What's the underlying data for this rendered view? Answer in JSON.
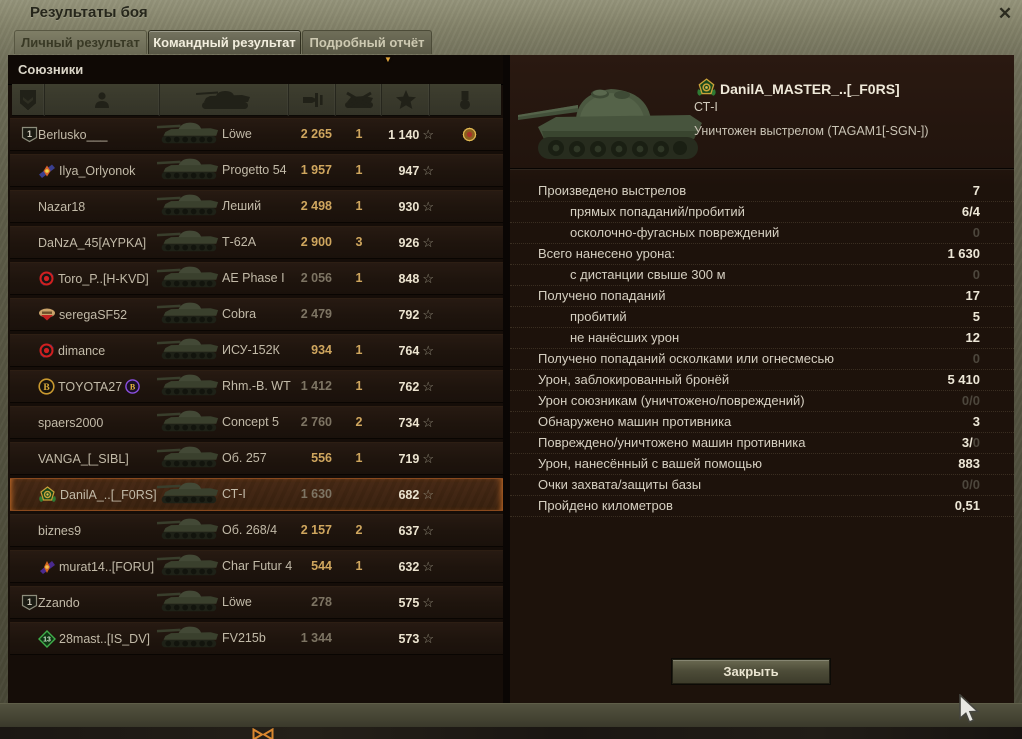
{
  "window": {
    "title": "Результаты боя"
  },
  "icons": {
    "close": "✕",
    "sort_desc": "▼",
    "xp_star": "☆"
  },
  "tabs": [
    {
      "label": "Личный результат",
      "active": false
    },
    {
      "label": "Командный результат",
      "active": true
    },
    {
      "label": "Подробный отчёт",
      "active": false
    }
  ],
  "allies": {
    "header": "Союзники",
    "columns": [
      "rank-icon",
      "player-icon",
      "vehicle-icon",
      "damage-icon",
      "kills-icon",
      "xp-star-icon",
      "medal-icon"
    ],
    "sorted_column": "xp",
    "rows": [
      {
        "squad": "1",
        "emblem": "",
        "player": "Berlusko___",
        "badge": "",
        "vehicle": "Löwe",
        "damage": "2 265",
        "damage_bright": true,
        "frags": "1",
        "xp": "1 140",
        "medal": true,
        "selected": false
      },
      {
        "squad": "",
        "emblem": "ilya",
        "player": "Ilya_Orlyonok",
        "badge": "",
        "vehicle": "Progetto 54",
        "damage": "1 957",
        "damage_bright": true,
        "frags": "1",
        "xp": "947",
        "medal": false,
        "selected": false
      },
      {
        "squad": "",
        "emblem": "",
        "player": "Nazar18",
        "badge": "",
        "vehicle": "Леший",
        "damage": "2 498",
        "damage_bright": true,
        "frags": "1",
        "xp": "930",
        "medal": false,
        "selected": false
      },
      {
        "squad": "",
        "emblem": "",
        "player": "DaNzA_45[AYPKA]",
        "badge": "",
        "vehicle": "Т-62А",
        "damage": "2 900",
        "damage_bright": true,
        "frags": "3",
        "xp": "926",
        "medal": false,
        "selected": false
      },
      {
        "squad": "",
        "emblem": "toro",
        "player": "Toro_P..[H-KVD]",
        "badge": "",
        "vehicle": "AE Phase I",
        "damage": "2 056",
        "damage_bright": false,
        "frags": "1",
        "xp": "848",
        "medal": false,
        "selected": false
      },
      {
        "squad": "",
        "emblem": "serega",
        "player": "seregaSF52",
        "badge": "",
        "vehicle": "Cobra",
        "damage": "2 479",
        "damage_bright": false,
        "frags": "",
        "xp": "792",
        "medal": false,
        "selected": false
      },
      {
        "squad": "",
        "emblem": "dimance",
        "player": "dimance",
        "badge": "",
        "vehicle": "ИСУ-152К",
        "damage": "934",
        "damage_bright": true,
        "frags": "1",
        "xp": "764",
        "medal": false,
        "selected": false
      },
      {
        "squad": "",
        "emblem": "toyota",
        "player": "TOYOTA27",
        "badge": "toyota2",
        "vehicle": "Rhm.-B. WT",
        "damage": "1 412",
        "damage_bright": false,
        "frags": "1",
        "xp": "762",
        "medal": false,
        "selected": false
      },
      {
        "squad": "",
        "emblem": "",
        "player": "spaers2000",
        "badge": "",
        "vehicle": "Concept 5",
        "damage": "2 760",
        "damage_bright": false,
        "frags": "2",
        "xp": "734",
        "medal": false,
        "selected": false
      },
      {
        "squad": "",
        "emblem": "",
        "player": "VANGA_[_SIBL]",
        "badge": "",
        "vehicle": "Об. 257",
        "damage": "556",
        "damage_bright": true,
        "frags": "1",
        "xp": "719",
        "medal": false,
        "selected": false
      },
      {
        "squad": "",
        "emblem": "danila",
        "player": "DanilA_..[_F0RS]",
        "badge": "",
        "vehicle": "СТ-I",
        "damage": "1 630",
        "damage_bright": false,
        "frags": "",
        "xp": "682",
        "medal": false,
        "selected": true
      },
      {
        "squad": "",
        "emblem": "",
        "player": "biznes9",
        "badge": "",
        "vehicle": "Об. 268/4",
        "damage": "2 157",
        "damage_bright": true,
        "frags": "2",
        "xp": "637",
        "medal": false,
        "selected": false
      },
      {
        "squad": "",
        "emblem": "murat",
        "player": "murat14..[FORU]",
        "badge": "",
        "vehicle": "Char Futur 4",
        "damage": "544",
        "damage_bright": true,
        "frags": "1",
        "xp": "632",
        "medal": false,
        "selected": false
      },
      {
        "squad": "1",
        "emblem": "",
        "player": "Zzando",
        "badge": "",
        "vehicle": "Löwe",
        "damage": "278",
        "damage_bright": false,
        "frags": "",
        "xp": "575",
        "medal": false,
        "selected": false
      },
      {
        "squad": "",
        "emblem": "mast28",
        "player": "28mast..[IS_DV]",
        "badge": "",
        "vehicle": "FV215b",
        "damage": "1 344",
        "damage_bright": false,
        "frags": "",
        "xp": "573",
        "medal": false,
        "selected": false
      }
    ]
  },
  "detail": {
    "player": "DanilA_MASTER_..[_F0RS]",
    "vehicle": "СТ-I",
    "death_reason": "Уничтожен выстрелом (TAGAM1[-SGN-])",
    "stats": [
      {
        "label": "Произведено выстрелов",
        "indent": false,
        "value": "7",
        "dim": ""
      },
      {
        "label": "прямых попаданий/пробитий",
        "indent": true,
        "value": "6/4",
        "dim": ""
      },
      {
        "label": "осколочно-фугасных повреждений",
        "indent": true,
        "value": "",
        "dim": "0"
      },
      {
        "label": "Всего нанесено урона:",
        "indent": false,
        "value": "1 630",
        "dim": ""
      },
      {
        "label": "с дистанции свыше 300 м",
        "indent": true,
        "value": "",
        "dim": "0"
      },
      {
        "label": "Получено попаданий",
        "indent": false,
        "value": "17",
        "dim": ""
      },
      {
        "label": "пробитий",
        "indent": true,
        "value": "5",
        "dim": ""
      },
      {
        "label": "не нанёсших урон",
        "indent": true,
        "value": "12",
        "dim": ""
      },
      {
        "label": "Получено попаданий осколками или огнесмесью",
        "indent": false,
        "value": "",
        "dim": "0"
      },
      {
        "label": "Урон, заблокированный бронёй",
        "indent": false,
        "value": "5 410",
        "dim": ""
      },
      {
        "label": "Урон союзникам (уничтожено/повреждений)",
        "indent": false,
        "value": "",
        "dim": "0/0"
      },
      {
        "label": "Обнаружено машин противника",
        "indent": false,
        "value": "3",
        "dim": ""
      },
      {
        "label": "Повреждено/уничтожено машин противника",
        "indent": false,
        "value": "3/",
        "dim": "0"
      },
      {
        "label": "Урон, нанесённый с вашей помощью",
        "indent": false,
        "value": "883",
        "dim": ""
      },
      {
        "label": "Очки захвата/защиты базы",
        "indent": false,
        "value": "",
        "dim": "0/0"
      },
      {
        "label": "Пройдено километров",
        "indent": false,
        "value": "0,51",
        "dim": ""
      }
    ],
    "close_button": "Закрыть"
  },
  "colors": {
    "gold_number": "#cfa65e",
    "dim_number": "#7d7463",
    "xp_number": "#ece4d0",
    "selected_row_border": "#8a4a1e",
    "frame_olive": "#5e5d49",
    "panel_dark": "#1d120b"
  }
}
